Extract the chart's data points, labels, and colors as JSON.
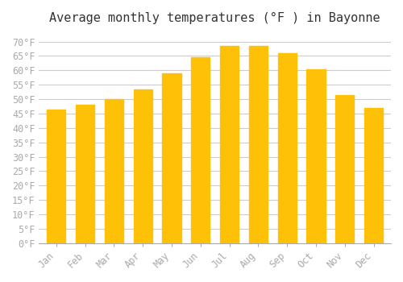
{
  "title": "Average monthly temperatures (°F ) in Bayonne",
  "months": [
    "Jan",
    "Feb",
    "Mar",
    "Apr",
    "May",
    "Jun",
    "Jul",
    "Aug",
    "Sep",
    "Oct",
    "Nov",
    "Dec"
  ],
  "values": [
    46.5,
    48.0,
    50.0,
    53.5,
    59.0,
    64.5,
    68.5,
    68.5,
    66.0,
    60.5,
    51.5,
    47.0
  ],
  "bar_color_top": "#FFC107",
  "bar_color_bottom": "#FFB300",
  "background_color": "#FFFFFF",
  "grid_color": "#CCCCCC",
  "tick_label_color": "#AAAAAA",
  "title_color": "#333333",
  "ylim": [
    0,
    73
  ],
  "yticks": [
    0,
    5,
    10,
    15,
    20,
    25,
    30,
    35,
    40,
    45,
    50,
    55,
    60,
    65,
    70
  ],
  "title_fontsize": 11,
  "tick_fontsize": 8.5
}
